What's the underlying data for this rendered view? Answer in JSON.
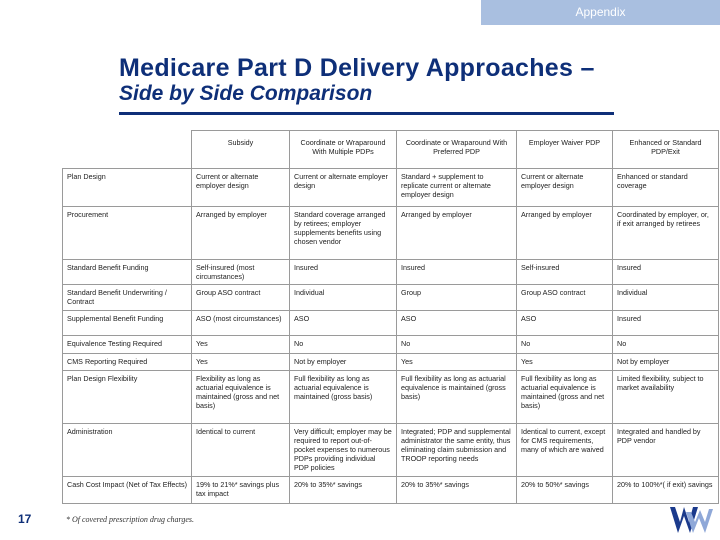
{
  "header": {
    "section_tab": "Appendix"
  },
  "title": "Medicare Part D Delivery Approaches –",
  "subtitle": "Side by Side Comparison",
  "table": {
    "columns": [
      "Subsidy",
      "Coordinate or Wraparound With Multiple PDPs",
      "Coordinate or Wraparound With Preferred PDP",
      "Employer Waiver PDP",
      "Enhanced or Standard PDP/Exit"
    ],
    "rows": [
      {
        "label": "Plan Design",
        "cells": [
          "Current or alternate employer design",
          "Current or alternate employer design",
          "Standard + supplement to replicate current or alternate employer design",
          "Current or alternate employer design",
          "Enhanced or standard coverage"
        ]
      },
      {
        "label": "Procurement",
        "cells": [
          "Arranged by employer",
          "Standard coverage arranged by retirees; employer supplements benefits using chosen vendor",
          "Arranged by employer",
          "Arranged by employer",
          "Coordinated by employer, or, if exit arranged by retirees"
        ]
      },
      {
        "label": "Standard Benefit Funding",
        "cells": [
          "Self-insured (most circumstances)",
          "Insured",
          "Insured",
          "Self-insured",
          "Insured"
        ]
      },
      {
        "label": "Standard Benefit Underwriting / Contract",
        "cells": [
          "Group ASO contract",
          "Individual",
          "Group",
          "Group ASO contract",
          "Individual"
        ]
      },
      {
        "label": "Supplemental Benefit Funding",
        "cells": [
          "ASO (most circumstances)",
          "ASO",
          "ASO",
          "ASO",
          "Insured"
        ]
      },
      {
        "label": "Equivalence Testing Required",
        "cells": [
          "Yes",
          "No",
          "No",
          "No",
          "No"
        ]
      },
      {
        "label": "CMS Reporting Required",
        "cells": [
          "Yes",
          "Not by employer",
          "Yes",
          "Yes",
          "Not by employer"
        ]
      },
      {
        "label": "Plan Design Flexibility",
        "cells": [
          "Flexibility as long as actuarial equivalence is maintained (gross and net basis)",
          "Full flexibility as long as actuarial equivalence is maintained (gross basis)",
          "Full flexibility as long as actuarial equivalence is maintained (gross basis)",
          "Full flexibility as long as actuarial equivalence is maintained (gross and net basis)",
          "Limited flexibility, subject to market availability"
        ]
      },
      {
        "label": "Administration",
        "cells": [
          "Identical to current",
          "Very difficult; employer may be required to report out-of-pocket expenses to numerous PDPs providing individual PDP policies",
          "Integrated; PDP and supplemental administrator the same entity, thus eliminating claim submission and TROOP reporting needs",
          "Identical to current, except for CMS requirements, many of which are waived",
          "Integrated and handled by PDP vendor"
        ]
      },
      {
        "label": "Cash Cost Impact (Net of Tax Effects)",
        "cells": [
          "19% to 21%* savings plus tax impact",
          "20% to 35%* savings",
          "20% to 35%* savings",
          "20% to 50%* savings",
          "20% to 100%*( if exit) savings"
        ]
      }
    ]
  },
  "footnote": "* Of covered prescription drug charges.",
  "page_number": "17",
  "logo": {
    "name": "watson-wyatt-w-logo",
    "text": "W",
    "colors": {
      "primary": "#1b3a8c",
      "secondary": "#8fa8d8"
    }
  },
  "colors": {
    "title": "#0e2f78",
    "tab_background": "#a9bfe0",
    "grid_line": "#9a9a9a"
  }
}
